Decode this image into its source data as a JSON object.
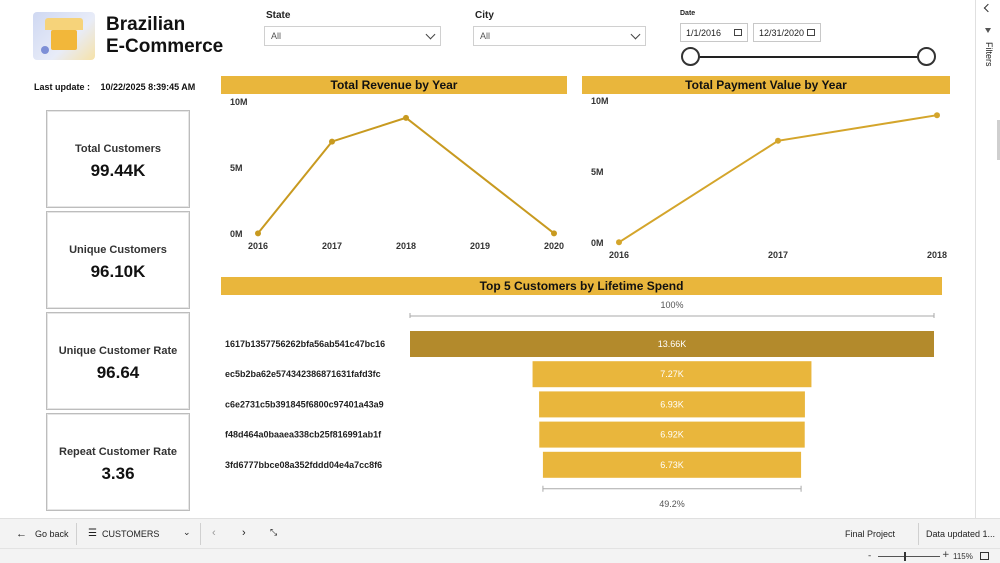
{
  "header": {
    "title_line1": "Brazilian",
    "title_line2": "E-Commerce",
    "logo_icon": "shop-illustration-icon"
  },
  "filters": {
    "state": {
      "label": "State",
      "value": "All"
    },
    "city": {
      "label": "City",
      "value": "All"
    },
    "date": {
      "label": "Date",
      "start": "1/1/2016",
      "end": "12/31/2020",
      "range_fraction": [
        0.0,
        1.0
      ]
    }
  },
  "last_update": {
    "label": "Last update :",
    "value": "10/22/2025 8:39:45 AM"
  },
  "kpis": [
    {
      "label": "Total Customers",
      "value": "99.44K"
    },
    {
      "label": "Unique Customers",
      "value": "96.10K"
    },
    {
      "label": "Unique Customer Rate",
      "value": "96.64"
    },
    {
      "label": "Repeat Customer Rate",
      "value": "3.36"
    }
  ],
  "chart_data": [
    {
      "type": "line",
      "title": "Total Revenue by Year",
      "x": [
        2016,
        2017,
        2018,
        2019,
        2020
      ],
      "y": [
        0.05,
        7.0,
        8.8,
        null,
        0.05
      ],
      "y_unit": "M",
      "ylim": [
        0,
        10
      ],
      "yticks": [
        "0M",
        "5M",
        "10M"
      ],
      "xticks": [
        "2016",
        "2017",
        "2018",
        "2019",
        "2020"
      ],
      "color": "#c89a20"
    },
    {
      "type": "line",
      "title": "Total Payment Value by Year",
      "x": [
        2016,
        2017,
        2018
      ],
      "y": [
        0.05,
        7.2,
        9.0
      ],
      "y_unit": "M",
      "ylim": [
        0,
        10
      ],
      "yticks": [
        "0M",
        "5M",
        "10M"
      ],
      "xticks": [
        "2016",
        "2017",
        "2018"
      ],
      "color": "#d4a52b"
    },
    {
      "type": "bar",
      "title": "Top 5 Customers by Lifetime Spend",
      "orientation": "funnel",
      "categories": [
        "1617b1357756262bfa56ab541c47bc16",
        "ec5b2ba62e574342386871631fafd3fc",
        "c6e2731c5b391845f6800c97401a43a9",
        "f48d464a0baaea338cb25f816991ab1f",
        "3fd6777bbce08a352fddd04e4a7cc8f6"
      ],
      "values": [
        13.66,
        7.27,
        6.93,
        6.92,
        6.73
      ],
      "value_labels": [
        "13.66K",
        "7.27K",
        "6.93K",
        "6.92K",
        "6.73K"
      ],
      "top_percent_label": "100%",
      "bottom_percent_label": "49.2%",
      "colors": {
        "highlight": "#b38a2c",
        "normal": "#e9b63c"
      }
    }
  ],
  "bottom_bar": {
    "back_label": "Go back",
    "page_label": "CUSTOMERS",
    "project_label": "Final Project",
    "data_updated_label": "Data updated 1..."
  },
  "status_bar": {
    "zoom_minus": "-",
    "zoom_plus": "+",
    "zoom_level": "115%"
  },
  "filters_pane": {
    "label": "Filters"
  }
}
